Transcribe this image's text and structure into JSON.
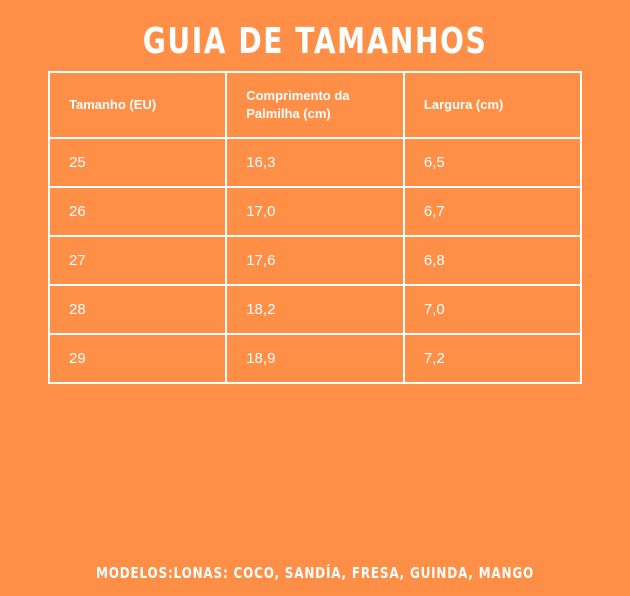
{
  "title": "GUIA DE TAMANHOS",
  "table": {
    "headers": [
      "Tamanho (EU)",
      "Comprimento da Palmilha (cm)",
      "Largura (cm)"
    ],
    "rows": [
      [
        "25",
        "16,3",
        "6,5"
      ],
      [
        "26",
        "17,0",
        "6,7"
      ],
      [
        "27",
        "17,6",
        "6,8"
      ],
      [
        "28",
        "18,2",
        "7,0"
      ],
      [
        "29",
        "18,9",
        "7,2"
      ]
    ]
  },
  "footer": "MODELOS:LONAS: COCO, SANDÍA, FRESA, GUINDA, MANGO",
  "colors": {
    "background": "#FF8F47",
    "text": "#FFFFFF",
    "border": "#FFFFFF"
  }
}
